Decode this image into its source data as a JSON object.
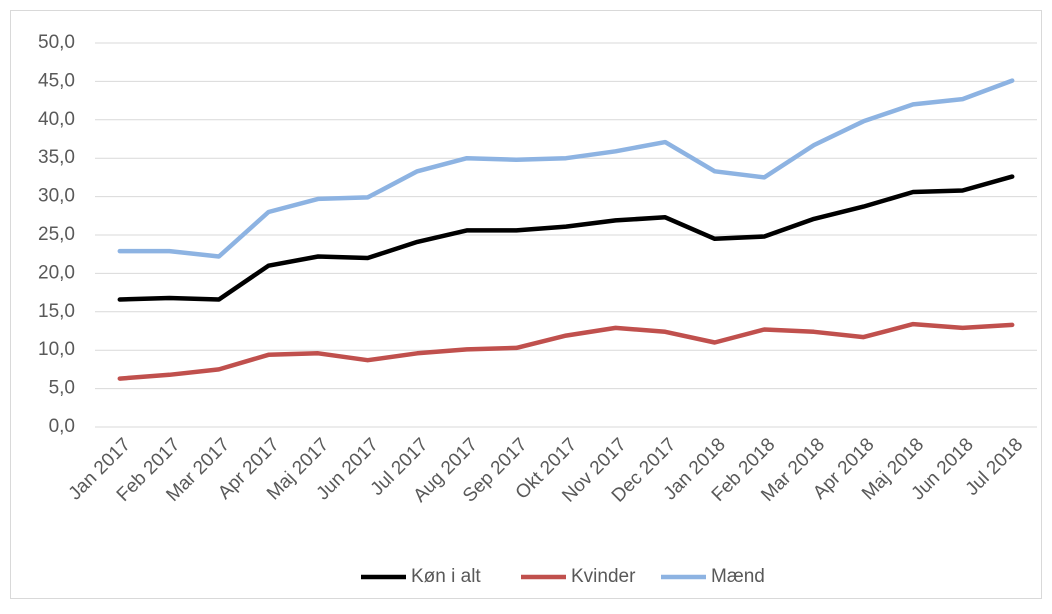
{
  "chart_data": {
    "type": "line",
    "categories": [
      "Jan 2017",
      "Feb 2017",
      "Mar 2017",
      "Apr 2017",
      "Maj 2017",
      "Jun 2017",
      "Jul 2017",
      "Aug 2017",
      "Sep 2017",
      "Okt 2017",
      "Nov 2017",
      "Dec 2017",
      "Jan 2018",
      "Feb 2018",
      "Mar 2018",
      "Apr 2018",
      "Maj 2018",
      "Jun 2018",
      "Jul 2018"
    ],
    "series": [
      {
        "name": "Køn i alt",
        "color": "#000000",
        "values": [
          16.6,
          16.8,
          16.6,
          21.0,
          22.2,
          22.0,
          24.1,
          25.6,
          25.6,
          26.1,
          26.9,
          27.3,
          24.5,
          24.8,
          27.1,
          28.7,
          30.6,
          30.8,
          32.6
        ]
      },
      {
        "name": "Kvinder",
        "color": "#c0504d",
        "values": [
          6.3,
          6.8,
          7.5,
          9.4,
          9.6,
          8.7,
          9.6,
          10.1,
          10.3,
          11.9,
          12.9,
          12.4,
          11.0,
          12.7,
          12.4,
          11.7,
          13.4,
          12.9,
          13.3
        ]
      },
      {
        "name": "Mænd",
        "color": "#8db3e2",
        "values": [
          22.9,
          22.9,
          22.2,
          28.0,
          29.7,
          29.9,
          33.3,
          35.0,
          34.8,
          35.0,
          35.9,
          37.1,
          33.3,
          32.5,
          36.7,
          39.8,
          42.0,
          42.7,
          45.1
        ]
      }
    ],
    "ylim": [
      0,
      50
    ],
    "yticks": [
      {
        "value": 0,
        "label": "0,0"
      },
      {
        "value": 5,
        "label": "5,0"
      },
      {
        "value": 10,
        "label": "10,0"
      },
      {
        "value": 15,
        "label": "15,0"
      },
      {
        "value": 20,
        "label": "20,0"
      },
      {
        "value": 25,
        "label": "25,0"
      },
      {
        "value": 30,
        "label": "30,0"
      },
      {
        "value": 35,
        "label": "35,0"
      },
      {
        "value": 40,
        "label": "40,0"
      },
      {
        "value": 45,
        "label": "45,0"
      },
      {
        "value": 50,
        "label": "50,0"
      }
    ],
    "grid": true,
    "legend": "bottom"
  }
}
